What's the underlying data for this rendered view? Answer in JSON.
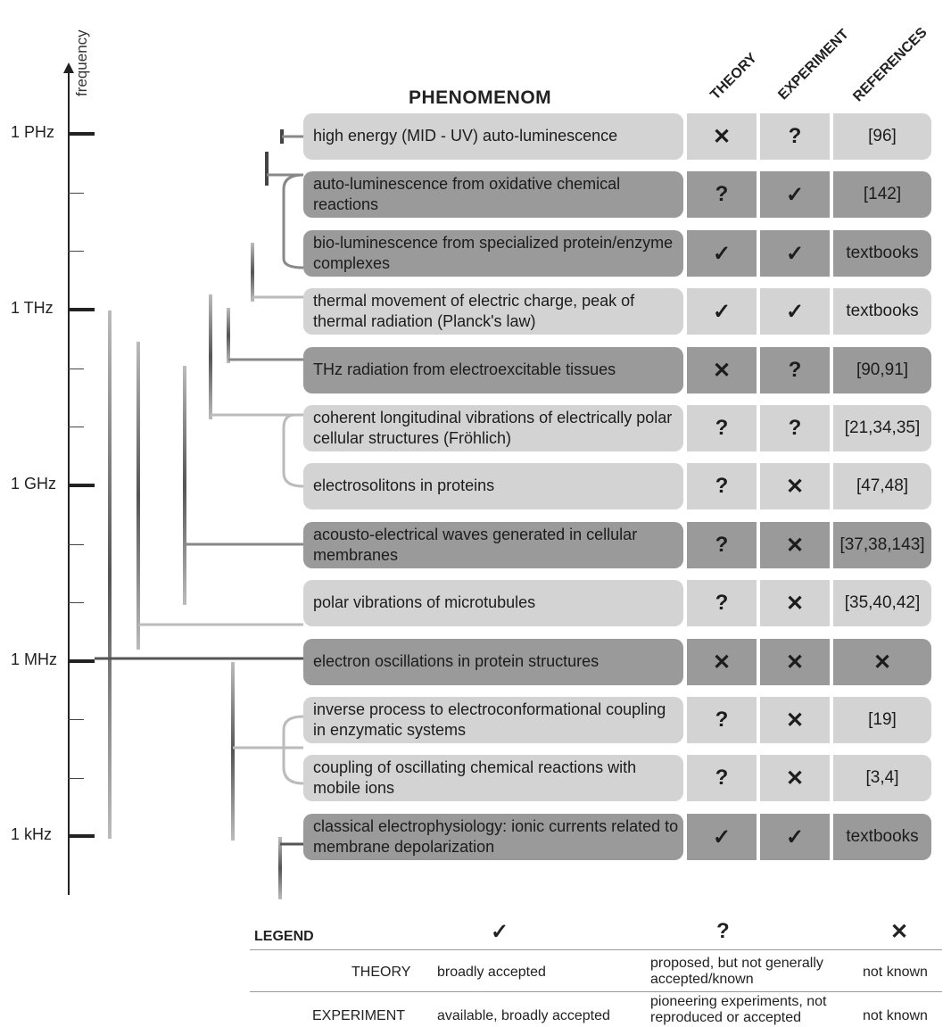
{
  "axis": {
    "label": "frequency",
    "ticks": [
      {
        "label": "1 PHz"
      },
      {
        "label": "1 THz"
      },
      {
        "label": "1 GHz"
      },
      {
        "label": "1 MHz"
      },
      {
        "label": "1 kHz"
      }
    ]
  },
  "header": {
    "title": "PHENOMENOM",
    "theory": "THEORY",
    "experiment": "EXPERIMENT",
    "references": "REFERENCES"
  },
  "symbols": {
    "check": "✓",
    "question": "?",
    "cross": "✕"
  },
  "rows": [
    {
      "text": "high energy (MID - UV) auto-luminescence",
      "theory": "✕",
      "experiment": "?",
      "references": "[96]",
      "shade": "light"
    },
    {
      "text": "auto-luminescence from oxidative chemical reactions",
      "theory": "?",
      "experiment": "✓",
      "references": "[142]",
      "shade": "dark"
    },
    {
      "text": "bio-luminescence from specialized protein/enzyme complexes",
      "theory": "✓",
      "experiment": "✓",
      "references": "textbooks",
      "shade": "dark"
    },
    {
      "text": "thermal movement of electric charge, peak of thermal radiation (Planck's law)",
      "theory": "✓",
      "experiment": "✓",
      "references": "textbooks",
      "shade": "light"
    },
    {
      "text": "THz radiation from electroexcitable tissues",
      "theory": "✕",
      "experiment": "?",
      "references": "[90,91]",
      "shade": "dark"
    },
    {
      "text": "coherent longitudinal vibrations of electrically polar cellular structures (Fröhlich)",
      "theory": "?",
      "experiment": "?",
      "references": "[21,34,35]",
      "shade": "light"
    },
    {
      "text": "electrosolitons in proteins",
      "theory": "?",
      "experiment": "✕",
      "references": "[47,48]",
      "shade": "light"
    },
    {
      "text": "acousto-electrical waves generated in cellular membranes",
      "theory": "?",
      "experiment": "✕",
      "references": "[37,38,143]",
      "shade": "dark"
    },
    {
      "text": "polar vibrations of microtubules",
      "theory": "?",
      "experiment": "✕",
      "references": "[35,40,42]",
      "shade": "light"
    },
    {
      "text": "electron oscillations in protein structures",
      "theory": "✕",
      "experiment": "✕",
      "references": "✕",
      "shade": "dark"
    },
    {
      "text": "inverse process to electroconformational coupling in enzymatic systems",
      "theory": "?",
      "experiment": "✕",
      "references": "[19]",
      "shade": "light"
    },
    {
      "text": "coupling of oscillating chemical reactions with mobile ions",
      "theory": "?",
      "experiment": "✕",
      "references": "[3,4]",
      "shade": "light"
    },
    {
      "text": "classical electrophysiology: ionic currents related to membrane depolarization",
      "theory": "✓",
      "experiment": "✓",
      "references": "textbooks",
      "shade": "dark"
    }
  ],
  "legend": {
    "title": "LEGEND",
    "check": "✓",
    "question": "?",
    "cross": "✕",
    "theory_label": "THEORY",
    "theory_check": "broadly accepted",
    "theory_question": "proposed, but not generally accepted/known",
    "theory_cross": "not known",
    "experiment_label": "EXPERIMENT",
    "experiment_check": "available, broadly accepted",
    "experiment_question": "pioneering experiments, not reproduced or accepted",
    "experiment_cross": "not known"
  },
  "colors": {
    "light": "#d3d3d3",
    "dark": "#9a9a9a",
    "line": "#222222"
  }
}
